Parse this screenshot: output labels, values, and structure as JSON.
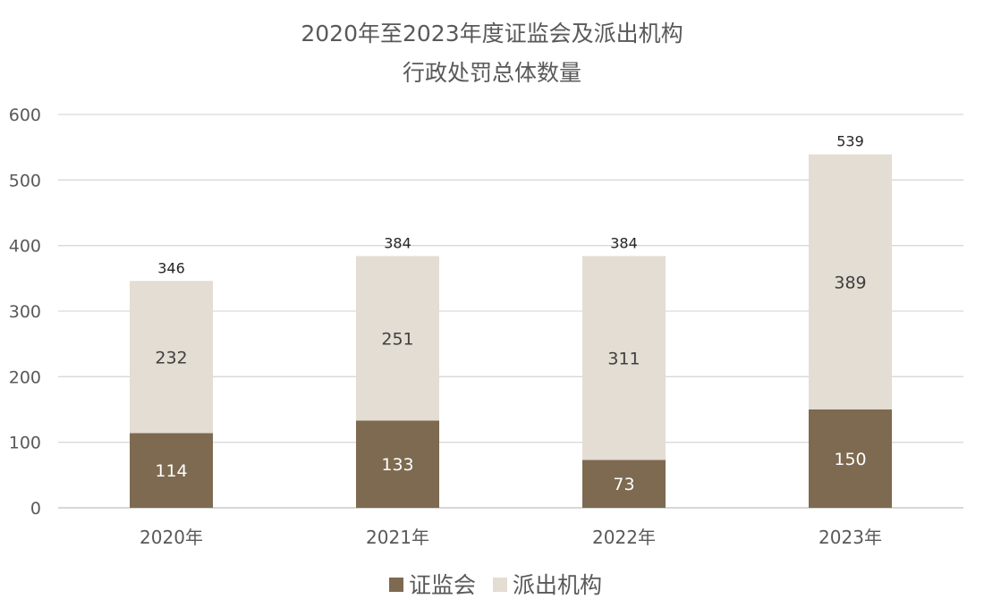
{
  "chart_data": {
    "type": "bar",
    "stacked": true,
    "title": "2020年至2023年度证监会及派出机构",
    "subtitle": "行政处罚总体数量",
    "categories": [
      "2020年",
      "2021年",
      "2022年",
      "2023年"
    ],
    "series": [
      {
        "name": "证监会",
        "values": [
          114,
          133,
          73,
          150
        ],
        "color": "#7d6a50",
        "label_color": "#ffffff"
      },
      {
        "name": "派出机构",
        "values": [
          232,
          251,
          311,
          389
        ],
        "color": "#e3ddd3",
        "label_color": "#404040"
      }
    ],
    "totals": [
      346,
      384,
      384,
      539
    ],
    "ylim": [
      0,
      600
    ],
    "yticks": [
      0,
      100,
      200,
      300,
      400,
      500,
      600
    ],
    "grid": true,
    "legend_position": "bottom"
  }
}
